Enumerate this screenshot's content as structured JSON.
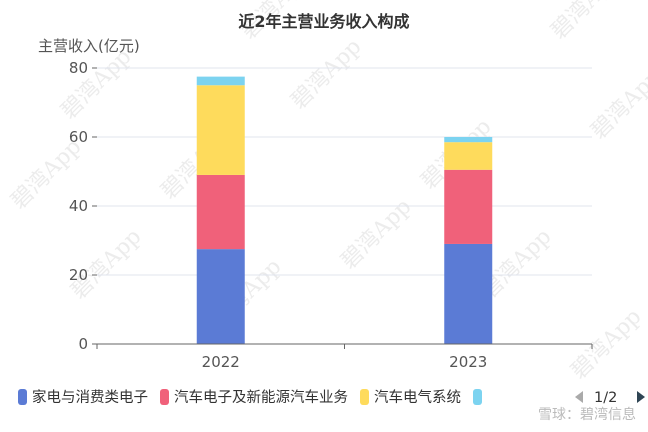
{
  "chart_data": {
    "type": "bar",
    "stacked": true,
    "title": "近2年主营业务收入构成",
    "ylabel": "主营收入(亿元)",
    "xlabel": "",
    "ylim": [
      0,
      80
    ],
    "yticks": [
      0,
      20,
      40,
      60,
      80
    ],
    "categories": [
      "2022",
      "2023"
    ],
    "grid": true,
    "legend_position": "bottom",
    "series": [
      {
        "name": "家电与消费类电子",
        "color": "#5b7bd5",
        "values": [
          27.5,
          29.0
        ]
      },
      {
        "name": "汽车电子及新能源汽车业务",
        "color": "#f0617a",
        "values": [
          21.5,
          21.5
        ]
      },
      {
        "name": "汽车电气系统",
        "color": "#fedb5c",
        "values": [
          26.0,
          8.0
        ]
      },
      {
        "name": "",
        "color": "#7cd3f0",
        "values": [
          2.5,
          1.5
        ]
      }
    ]
  },
  "legend": {
    "page": "1/2",
    "prev_icon": "triangle-left-icon",
    "next_icon": "triangle-right-icon"
  },
  "watermark": "碧湾App",
  "footer": "雪球：碧湾信息"
}
